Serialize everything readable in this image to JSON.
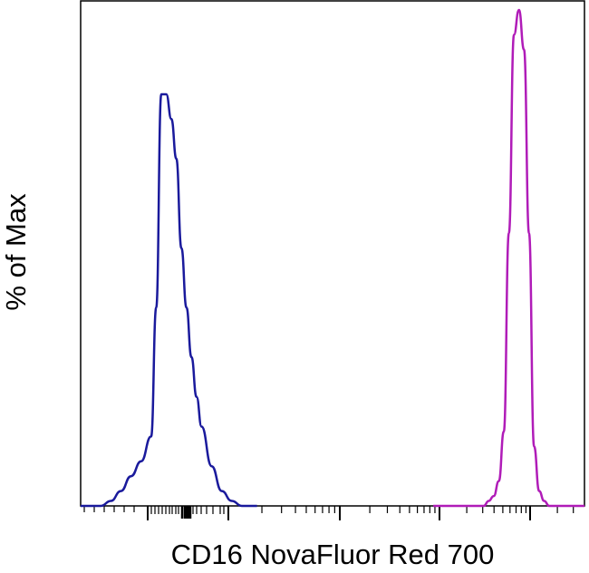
{
  "chart_data": {
    "type": "line",
    "title": "",
    "xlabel": "CD16 NovaFluor Red 700",
    "ylabel": "% of Max",
    "x_scale": "biexponential",
    "x_tick_labels": [],
    "y_tick_labels": [],
    "legend": "none",
    "grid": false,
    "series": [
      {
        "color": "#1a1a9c",
        "x": [
          0.0,
          0.02,
          0.04,
          0.06,
          0.08,
          0.1,
          0.12,
          0.14,
          0.15,
          0.16,
          0.17,
          0.18,
          0.19,
          0.2,
          0.21,
          0.22,
          0.23,
          0.24,
          0.26,
          0.28,
          0.3,
          0.32,
          0.35
        ],
        "y": [
          0,
          0,
          0,
          1,
          3,
          6,
          9,
          14,
          40,
          83,
          83,
          78,
          70,
          52,
          40,
          30,
          22,
          16,
          8,
          3,
          1,
          0,
          0
        ]
      },
      {
        "color": "#b01cb8",
        "x": [
          0.7,
          0.76,
          0.8,
          0.81,
          0.82,
          0.83,
          0.84,
          0.85,
          0.86,
          0.87,
          0.88,
          0.89,
          0.9,
          0.91,
          0.92,
          0.93,
          1.0
        ],
        "y": [
          0,
          0,
          0,
          1,
          2,
          5,
          15,
          55,
          95,
          100,
          92,
          55,
          12,
          3,
          1,
          0,
          0
        ]
      }
    ]
  }
}
